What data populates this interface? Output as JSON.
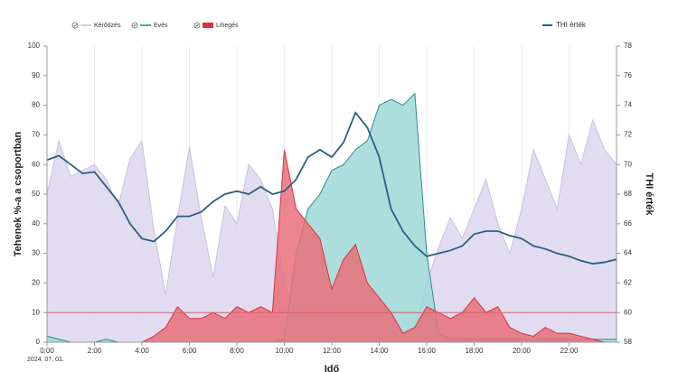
{
  "chart_data": {
    "type": "area",
    "x_label": "Idő",
    "y_label": "Tehenek %-a a csoportban",
    "y2_label": "THI érték",
    "date_label": "2024. 07. 01.",
    "xlim": [
      0,
      24
    ],
    "xticks": [
      {
        "value": 0,
        "label": "0:00"
      },
      {
        "value": 2,
        "label": "2:00"
      },
      {
        "value": 4,
        "label": "4:00"
      },
      {
        "value": 6,
        "label": "6:00"
      },
      {
        "value": 8,
        "label": "8:00"
      },
      {
        "value": 10,
        "label": "10:00"
      },
      {
        "value": 12,
        "label": "12:00"
      },
      {
        "value": 14,
        "label": "14:00"
      },
      {
        "value": 16,
        "label": "16:00"
      },
      {
        "value": 18,
        "label": "18:00"
      },
      {
        "value": 20,
        "label": "20:00"
      },
      {
        "value": 22,
        "label": "22:00"
      }
    ],
    "ylim": [
      0,
      100
    ],
    "yticks": [
      0,
      10,
      20,
      30,
      40,
      50,
      60,
      70,
      80,
      90,
      100
    ],
    "y2lim": [
      58,
      78
    ],
    "y2ticks": [
      58,
      60,
      62,
      64,
      66,
      68,
      70,
      72,
      74,
      76,
      78
    ],
    "grid": true,
    "reference_line": {
      "value": 10,
      "color": "#d9606a"
    },
    "x": [
      0,
      0.5,
      1,
      1.5,
      2,
      2.5,
      3,
      3.5,
      4,
      4.5,
      5,
      5.5,
      6,
      6.5,
      7,
      7.5,
      8,
      8.5,
      9,
      9.5,
      10,
      10.5,
      11,
      11.5,
      12,
      12.5,
      13,
      13.5,
      14,
      14.5,
      15,
      15.5,
      16,
      16.5,
      17,
      17.5,
      18,
      18.5,
      19,
      19.5,
      20,
      20.5,
      21,
      21.5,
      22,
      22.5,
      23,
      23.5,
      24
    ],
    "series": [
      {
        "name": "Kérődzés",
        "type": "area",
        "color": "#c9c0e2",
        "fill": "#ddd6ee",
        "values": [
          50,
          68,
          56,
          58,
          60,
          55,
          46,
          62,
          68,
          38,
          16,
          42,
          66,
          42,
          22,
          46,
          40,
          60,
          55,
          45,
          20,
          10,
          6,
          5,
          5,
          4,
          4,
          3,
          3,
          3,
          4,
          5,
          20,
          32,
          42,
          35,
          45,
          55,
          40,
          30,
          45,
          65,
          55,
          45,
          70,
          60,
          75,
          65,
          60
        ]
      },
      {
        "name": "Evés",
        "type": "area",
        "color": "#2a8f8f",
        "fill": "#9fd8d8",
        "values": [
          2,
          1,
          0,
          0,
          0,
          1,
          0,
          0,
          0,
          0,
          0,
          0,
          0,
          0,
          0,
          0,
          0,
          0,
          0,
          0,
          1,
          30,
          45,
          50,
          58,
          60,
          65,
          68,
          80,
          82,
          80,
          84,
          30,
          3,
          1,
          1,
          1,
          1,
          1,
          1,
          1,
          1,
          1,
          1,
          1,
          1,
          1,
          1,
          1
        ]
      },
      {
        "name": "Lihegés",
        "type": "area",
        "color": "#d8323f",
        "fill": "#e8707a",
        "values": [
          0,
          0,
          0,
          0,
          0,
          0,
          0,
          0,
          0,
          2,
          5,
          12,
          8,
          8,
          10,
          8,
          12,
          10,
          12,
          10,
          65,
          45,
          40,
          35,
          18,
          28,
          33,
          20,
          15,
          10,
          3,
          5,
          12,
          10,
          8,
          10,
          15,
          10,
          12,
          5,
          3,
          2,
          5,
          3,
          3,
          2,
          1,
          0,
          0
        ]
      },
      {
        "name": "THI érték",
        "type": "line",
        "axis": "y2",
        "color": "#2b5f80",
        "values": [
          70.3,
          70.6,
          70,
          69.4,
          69.5,
          68.5,
          67.5,
          66,
          65,
          64.8,
          65.5,
          66.5,
          66.5,
          66.8,
          67.5,
          68,
          68.2,
          68,
          68.5,
          68,
          68.2,
          69,
          70.5,
          71,
          70.5,
          71.5,
          73.5,
          72.5,
          70.5,
          67,
          65.5,
          64.5,
          63.8,
          64,
          64.2,
          64.5,
          65.3,
          65.5,
          65.5,
          65.2,
          65,
          64.5,
          64.3,
          64,
          63.8,
          63.5,
          63.3,
          63.4,
          63.6
        ]
      }
    ]
  }
}
